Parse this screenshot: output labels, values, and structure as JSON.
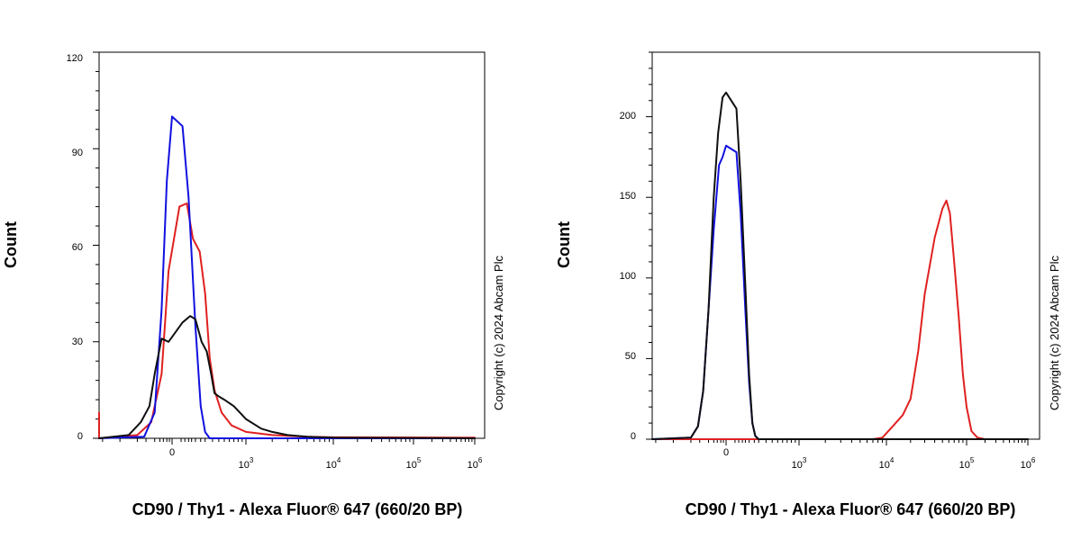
{
  "chart_data": [
    {
      "type": "line",
      "panel": "left",
      "xlabel": "CD90 / Thy1 - Alexa Fluor® 647 (660/20 BP)",
      "ylabel": "Count",
      "x_scale": "biexponential",
      "x_tick_labels": [
        {
          "base": "0",
          "exp": ""
        },
        {
          "base": "10",
          "exp": "3"
        },
        {
          "base": "10",
          "exp": "4"
        },
        {
          "base": "10",
          "exp": "5"
        },
        {
          "base": "10",
          "exp": "6"
        }
      ],
      "ylim": [
        0,
        120
      ],
      "y_ticks": [
        "0",
        "30",
        "60",
        "90",
        "120"
      ],
      "grid": false,
      "series": [
        {
          "color": "#e02020",
          "points": [
            [
              -700,
              8
            ],
            [
              -420,
              0
            ],
            [
              -200,
              1
            ],
            [
              -120,
              5
            ],
            [
              -60,
              20
            ],
            [
              -20,
              52
            ],
            [
              10,
              72
            ],
            [
              40,
              73
            ],
            [
              80,
              62
            ],
            [
              140,
              58
            ],
            [
              200,
              45
            ],
            [
              260,
              25
            ],
            [
              330,
              15
            ],
            [
              450,
              8
            ],
            [
              650,
              4
            ],
            [
              1000,
              2
            ],
            [
              2000,
              1
            ],
            [
              5000,
              0.5
            ],
            [
              10000,
              0.3
            ],
            [
              1000000,
              0.2
            ]
          ]
        },
        {
          "color": "#1010e0",
          "points": [
            [
              -420,
              0
            ],
            [
              -160,
              0.5
            ],
            [
              -100,
              8
            ],
            [
              -60,
              40
            ],
            [
              -30,
              80
            ],
            [
              0,
              100
            ],
            [
              20,
              97
            ],
            [
              50,
              75
            ],
            [
              100,
              35
            ],
            [
              150,
              10
            ],
            [
              200,
              2
            ],
            [
              260,
              0
            ],
            [
              1000000,
              0
            ]
          ]
        },
        {
          "color": "#101010",
          "points": [
            [
              -420,
              0
            ],
            [
              -250,
              1
            ],
            [
              -180,
              5
            ],
            [
              -130,
              10
            ],
            [
              -100,
              20
            ],
            [
              -60,
              31
            ],
            [
              -20,
              30
            ],
            [
              20,
              36
            ],
            [
              60,
              38
            ],
            [
              100,
              37
            ],
            [
              160,
              30
            ],
            [
              220,
              27
            ],
            [
              280,
              20
            ],
            [
              330,
              14
            ],
            [
              400,
              13
            ],
            [
              500,
              12
            ],
            [
              700,
              10
            ],
            [
              1000,
              6
            ],
            [
              1500,
              3
            ],
            [
              2000,
              2
            ],
            [
              3000,
              1
            ],
            [
              5000,
              0.5
            ],
            [
              10000,
              0.2
            ],
            [
              1000000,
              0
            ]
          ]
        }
      ]
    },
    {
      "type": "line",
      "panel": "right",
      "xlabel": "CD90 / Thy1 - Alexa Fluor® 647 (660/20 BP)",
      "ylabel": "Count",
      "x_scale": "biexponential",
      "x_tick_labels": [
        {
          "base": "0",
          "exp": ""
        },
        {
          "base": "10",
          "exp": "3"
        },
        {
          "base": "10",
          "exp": "4"
        },
        {
          "base": "10",
          "exp": "5"
        },
        {
          "base": "10",
          "exp": "6"
        }
      ],
      "ylim": [
        0,
        240
      ],
      "y_ticks": [
        "0",
        "50",
        "100",
        "150",
        "200"
      ],
      "grid": false,
      "series": [
        {
          "color": "#e02020",
          "points": [
            [
              -420,
              0
            ],
            [
              7000,
              0
            ],
            [
              9000,
              1
            ],
            [
              12000,
              8
            ],
            [
              16000,
              15
            ],
            [
              20000,
              25
            ],
            [
              25000,
              55
            ],
            [
              30000,
              90
            ],
            [
              40000,
              125
            ],
            [
              50000,
              143
            ],
            [
              56000,
              148
            ],
            [
              62000,
              140
            ],
            [
              70000,
              110
            ],
            [
              80000,
              75
            ],
            [
              90000,
              40
            ],
            [
              100000,
              20
            ],
            [
              120000,
              5
            ],
            [
              150000,
              1
            ],
            [
              200000,
              0
            ],
            [
              1000000,
              0
            ]
          ]
        },
        {
          "color": "#1010e0",
          "points": [
            [
              -420,
              0
            ],
            [
              -200,
              1
            ],
            [
              -160,
              8
            ],
            [
              -130,
              30
            ],
            [
              -100,
              80
            ],
            [
              -70,
              130
            ],
            [
              -40,
              170
            ],
            [
              -20,
              175
            ],
            [
              0,
              182
            ],
            [
              20,
              178
            ],
            [
              40,
              140
            ],
            [
              70,
              80
            ],
            [
              100,
              35
            ],
            [
              130,
              10
            ],
            [
              160,
              2
            ],
            [
              200,
              0
            ],
            [
              1000000,
              0
            ]
          ]
        },
        {
          "color": "#101010",
          "points": [
            [
              -420,
              0
            ],
            [
              -200,
              1
            ],
            [
              -160,
              8
            ],
            [
              -130,
              30
            ],
            [
              -100,
              80
            ],
            [
              -70,
              150
            ],
            [
              -45,
              190
            ],
            [
              -20,
              212
            ],
            [
              0,
              215
            ],
            [
              20,
              205
            ],
            [
              40,
              160
            ],
            [
              70,
              95
            ],
            [
              100,
              40
            ],
            [
              130,
              10
            ],
            [
              160,
              2
            ],
            [
              200,
              0
            ],
            [
              1000000,
              0
            ]
          ]
        }
      ]
    }
  ],
  "copyright": "Copyright (c) 2024 Abcam Plc"
}
